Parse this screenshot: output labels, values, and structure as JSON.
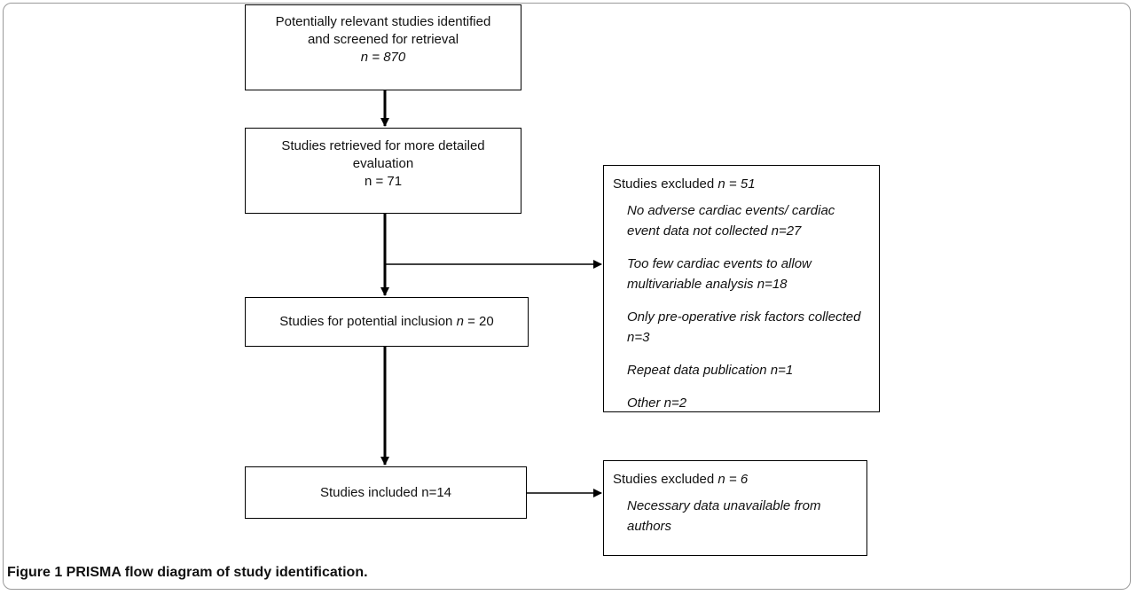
{
  "diagram": {
    "box_identified": {
      "line1": "Potentially relevant studies identified",
      "line2": "and screened for retrieval",
      "n": "n = 870"
    },
    "box_retrieved": {
      "line1": "Studies retrieved  for more detailed",
      "line2": "evaluation",
      "n": "n = 71"
    },
    "box_potential": {
      "label": "Studies for potential inclusion ",
      "n_italic": "n",
      "n_value": " = 20"
    },
    "box_included": {
      "label": "Studies included n=14"
    },
    "excluded_1": {
      "head_label": "Studies excluded ",
      "head_n": "n = 51",
      "items": [
        "No adverse cardiac events/ cardiac event data not collected n=27",
        "Too few cardiac events to allow multivariable analysis n=18",
        "Only pre-operative  risk factors collected n=3",
        "Repeat data publication n=1",
        "Other n=2"
      ]
    },
    "excluded_2": {
      "head_label": "Studies excluded ",
      "head_n": "n = 6",
      "items": [
        "Necessary data unavailable  from authors"
      ]
    }
  },
  "caption": "Figure 1 PRISMA flow diagram of study identification."
}
